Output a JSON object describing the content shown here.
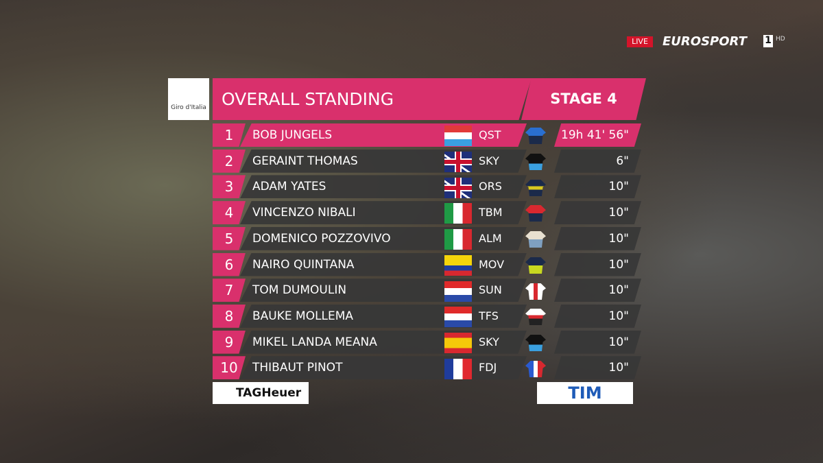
{
  "broadcast": {
    "live": "LIVE",
    "channel": "EUROSPORT",
    "channel_number": "1",
    "hd": "HD"
  },
  "header": {
    "logo": "Giro d'Italia",
    "title": "OVERALL STANDING",
    "stage": "STAGE 4"
  },
  "standings": [
    {
      "rank": 1,
      "name": "BOB JUNGELS",
      "team": "QST",
      "time": "19h 41' 56\""
    },
    {
      "rank": 2,
      "name": "GERAINT THOMAS",
      "team": "SKY",
      "time": "6\""
    },
    {
      "rank": 3,
      "name": "ADAM YATES",
      "team": "ORS",
      "time": "10\""
    },
    {
      "rank": 4,
      "name": "VINCENZO NIBALI",
      "team": "TBM",
      "time": "10\""
    },
    {
      "rank": 5,
      "name": "DOMENICO POZZOVIVO",
      "team": "ALM",
      "time": "10\""
    },
    {
      "rank": 6,
      "name": "NAIRO QUINTANA",
      "team": "MOV",
      "time": "10\""
    },
    {
      "rank": 7,
      "name": "TOM DUMOULIN",
      "team": "SUN",
      "time": "10\""
    },
    {
      "rank": 8,
      "name": "BAUKE MOLLEMA",
      "team": "TFS",
      "time": "10\""
    },
    {
      "rank": 9,
      "name": "MIKEL LANDA MEANA",
      "team": "SKY",
      "time": "10\""
    },
    {
      "rank": 10,
      "name": "THIBAUT PINOT",
      "team": "FDJ",
      "time": "10\""
    }
  ],
  "sponsors": [
    "TAGHeuer",
    "TIM"
  ]
}
